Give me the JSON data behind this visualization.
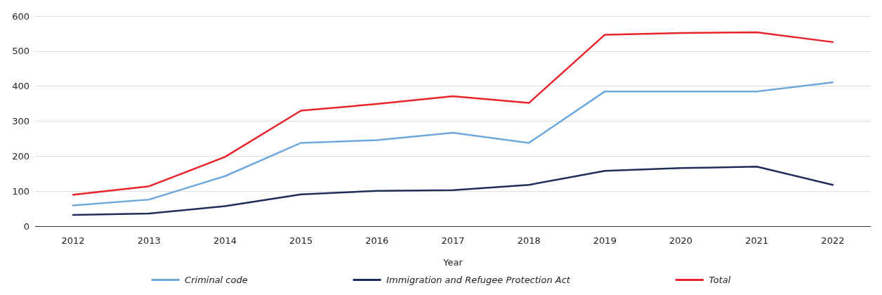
{
  "chart_data": {
    "type": "line",
    "xlabel": "Year",
    "categories": [
      "2012",
      "2013",
      "2014",
      "2015",
      "2016",
      "2017",
      "2018",
      "2019",
      "2020",
      "2021",
      "2022"
    ],
    "series": [
      {
        "name": "Criminal code",
        "color": "#6fa8dc",
        "values": [
          59,
          76,
          143,
          238,
          246,
          267,
          238,
          385,
          385,
          385,
          411
        ]
      },
      {
        "name": "Immigration and Refugee Protection Act",
        "color": "#1f2d5a",
        "values": [
          32,
          36,
          57,
          91,
          101,
          103,
          118,
          158,
          166,
          170,
          118
        ]
      },
      {
        "name": "Total",
        "color": "#e8232a",
        "values": [
          90,
          114,
          198,
          330,
          349,
          371,
          352,
          547,
          552,
          554,
          526
        ]
      }
    ],
    "ylim": [
      0,
      600
    ],
    "yticks": [
      0,
      100,
      200,
      300,
      400,
      500,
      600
    ],
    "grid": "y",
    "legend": "bottom",
    "marker": "none",
    "line_style": "solid"
  }
}
